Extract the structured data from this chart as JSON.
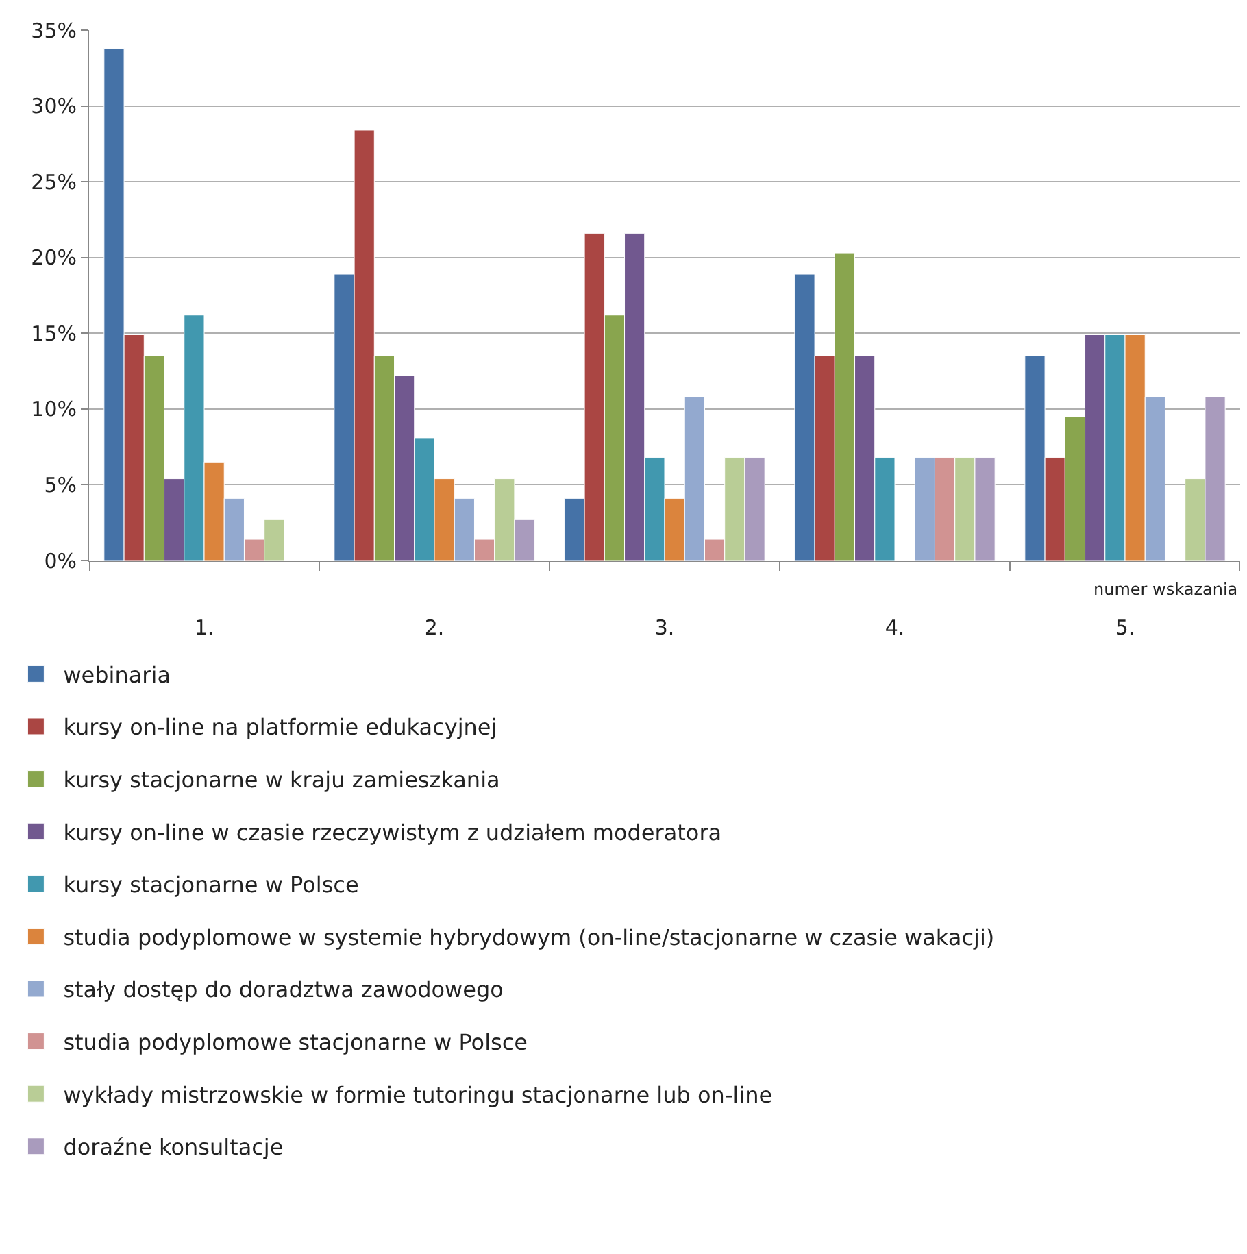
{
  "chart_data": {
    "type": "bar",
    "xlabel": null,
    "categories": [
      "1.",
      "2.",
      "3.",
      "4.",
      "5."
    ],
    "ylim": [
      0,
      35
    ],
    "yticks": [
      {
        "value": 0,
        "label": "0%"
      },
      {
        "value": 5,
        "label": "5%"
      },
      {
        "value": 10,
        "label": "10%"
      },
      {
        "value": 15,
        "label": "15%"
      },
      {
        "value": 20,
        "label": "20%"
      },
      {
        "value": 25,
        "label": "25%"
      },
      {
        "value": 30,
        "label": "30%"
      },
      {
        "value": 35,
        "label": "35%"
      }
    ],
    "grid": "y",
    "legend": "bottom",
    "annotations": [
      "numer wskazania"
    ],
    "series": [
      {
        "name": "webinaria",
        "color": "#4572a7",
        "values": [
          33.8,
          18.9,
          4.1,
          18.9,
          13.5
        ]
      },
      {
        "name": "kursy on-line na platformie edukacyjnej",
        "color": "#aa4643",
        "values": [
          14.9,
          28.4,
          21.6,
          13.5,
          6.8
        ]
      },
      {
        "name": "kursy stacjonarne w kraju zamieszkania",
        "color": "#89a54e",
        "values": [
          13.5,
          13.5,
          16.2,
          20.3,
          9.5
        ]
      },
      {
        "name": "kursy on-line w czasie rzeczywistym z udziałem moderatora",
        "color": "#71588f",
        "values": [
          5.4,
          12.2,
          21.6,
          13.5,
          14.9
        ]
      },
      {
        "name": "kursy stacjonarne w Polsce",
        "color": "#4198af",
        "values": [
          16.2,
          8.1,
          6.8,
          6.8,
          14.9
        ]
      },
      {
        "name": "studia podyplomowe w systemie hybrydowym (on-line/stacjonarne w czasie wakacji)",
        "color": "#db843d",
        "values": [
          6.5,
          5.4,
          4.1,
          null,
          14.9
        ]
      },
      {
        "name": "stały dostęp do doradztwa zawodowego",
        "color": "#93a9cf",
        "values": [
          4.1,
          4.1,
          10.8,
          6.8,
          10.8
        ]
      },
      {
        "name": "studia podyplomowe stacjonarne w Polsce",
        "color": "#d19392",
        "values": [
          1.4,
          1.4,
          1.4,
          6.8,
          null
        ]
      },
      {
        "name": "wykłady mistrzowskie w formie tutoringu stacjonarne lub on-line",
        "color": "#b9cd96",
        "values": [
          2.7,
          5.4,
          6.8,
          6.8,
          5.4
        ]
      },
      {
        "name": "doraźne konsultacje",
        "color": "#a99bbd",
        "values": [
          null,
          2.7,
          6.8,
          6.8,
          10.8
        ]
      }
    ]
  }
}
